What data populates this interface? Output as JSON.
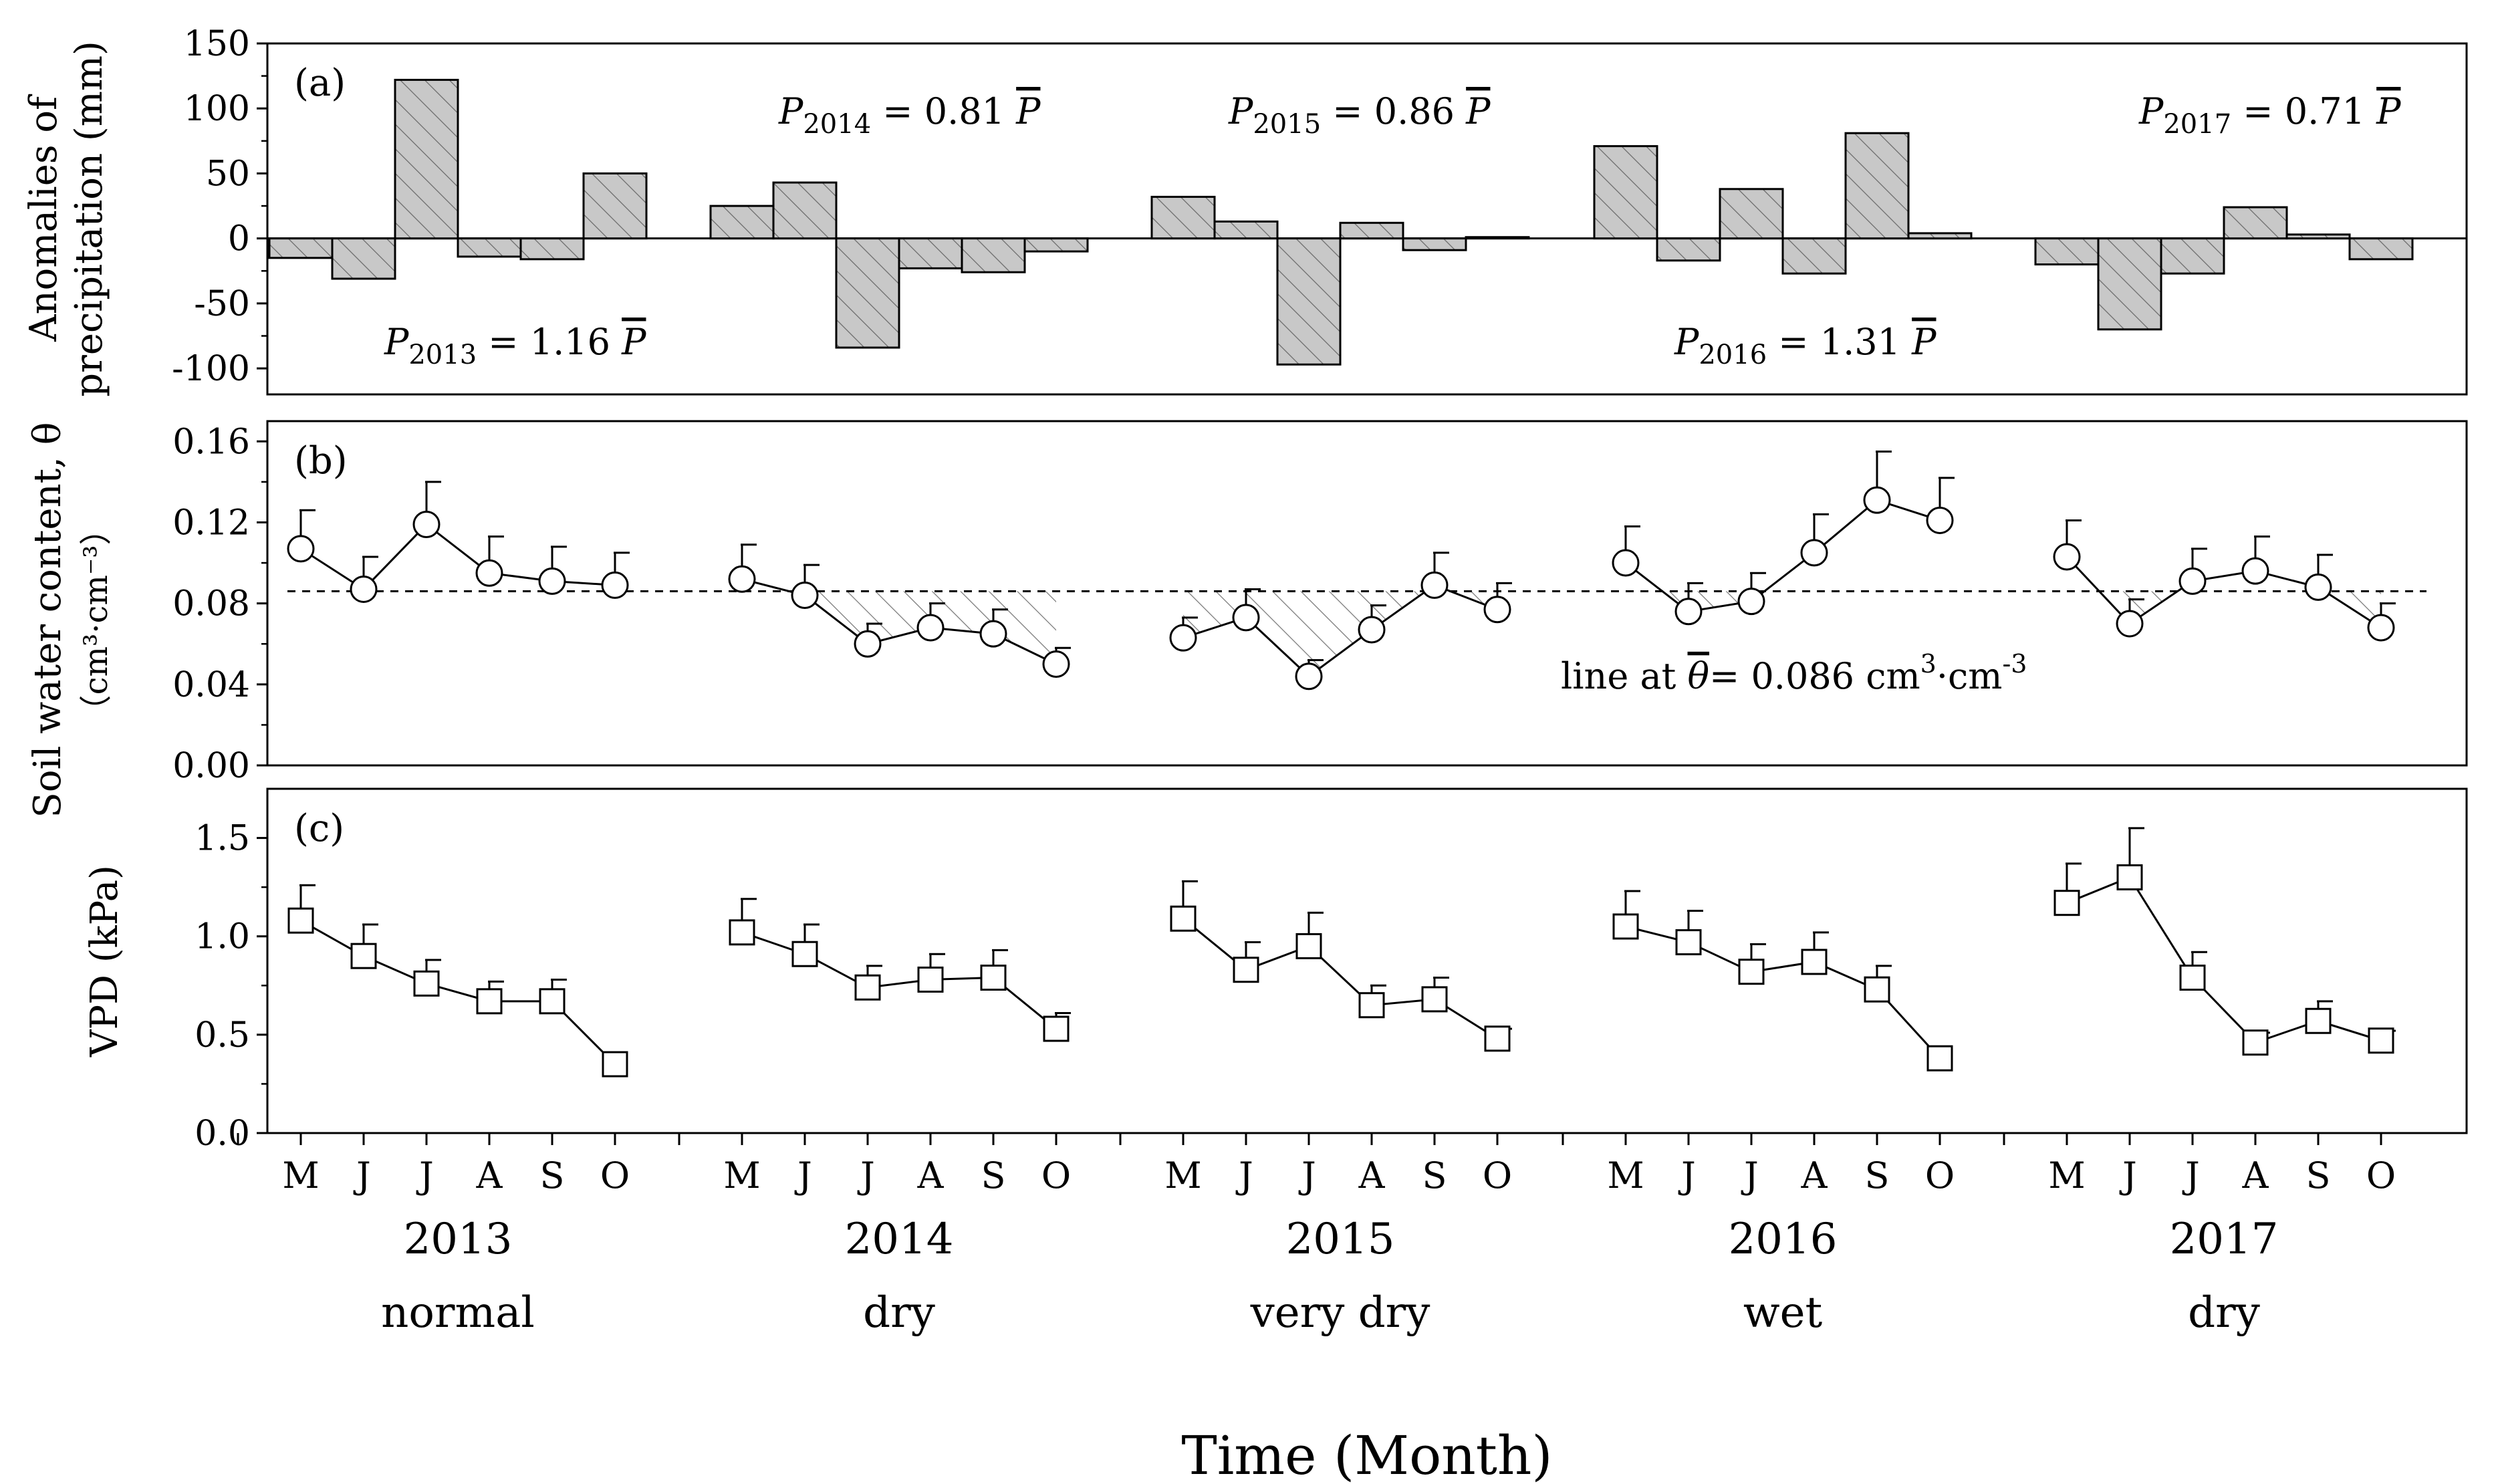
{
  "chart_data": {
    "type": "bar",
    "xlabel": "Time (Month)",
    "months": [
      "M",
      "J",
      "J",
      "A",
      "S",
      "O"
    ],
    "years": [
      {
        "year": "2013",
        "label": "normal"
      },
      {
        "year": "2014",
        "label": "dry"
      },
      {
        "year": "2015",
        "label": "very dry"
      },
      {
        "year": "2016",
        "label": "wet"
      },
      {
        "year": "2017",
        "label": "dry"
      }
    ],
    "panels": [
      {
        "id": "a",
        "panel_label": "(a)",
        "type": "bar",
        "ylabel_line1": "Anomalies of",
        "ylabel_line2": "precipitation (mm)",
        "ylim": [
          -120,
          150
        ],
        "yticks": [
          -100,
          -50,
          0,
          50,
          100,
          150
        ],
        "ytick_labels": [
          "-100",
          "-50",
          "0",
          "50",
          "100",
          "150"
        ],
        "values": [
          [
            -15,
            -31,
            122,
            -14,
            -16,
            50
          ],
          [
            25,
            43,
            -84,
            -23,
            -26,
            -10
          ],
          [
            32,
            13,
            -97,
            12,
            -9,
            1
          ],
          [
            71,
            -17,
            38,
            -27,
            81,
            4
          ],
          [
            -20,
            -70,
            -27,
            24,
            3,
            -16
          ]
        ],
        "annotations": [
          {
            "text": "P",
            "sub": "2013",
            "rest": " = 1.16 ",
            "pbar": "P",
            "year_index": 0
          },
          {
            "text": "P",
            "sub": "2014",
            "rest": " = 0.81 ",
            "pbar": "P",
            "year_index": 1
          },
          {
            "text": "P",
            "sub": "2015",
            "rest": " = 0.86 ",
            "pbar": "P",
            "year_index": 2
          },
          {
            "text": "P",
            "sub": "2016",
            "rest": " = 1.31 ",
            "pbar": "P",
            "year_index": 3
          },
          {
            "text": "P",
            "sub": "2017",
            "rest": " = 0.71 ",
            "pbar": "P",
            "year_index": 4
          }
        ]
      },
      {
        "id": "b",
        "panel_label": "(b)",
        "type": "line",
        "ylabel": "Soil water content, θ",
        "ylabel_unit": "（cm³·cm⁻³）",
        "ylim": [
          0,
          0.17
        ],
        "yticks": [
          0,
          0.04,
          0.08,
          0.12,
          0.16
        ],
        "ytick_labels": [
          "0.00",
          "0.04",
          "0.08",
          "0.12",
          "0.16"
        ],
        "marker": "circle",
        "reference_line": 0.086,
        "reference_label_prefix": "line at ",
        "reference_label_theta": "θ",
        "reference_label_value": "= 0.086 cm",
        "reference_label_mid": "·cm",
        "reference_label_sup1": "3",
        "reference_label_sup2": "-3",
        "values": [
          [
            0.107,
            0.087,
            0.119,
            0.095,
            0.091,
            0.089
          ],
          [
            0.092,
            0.084,
            0.06,
            0.068,
            0.065,
            0.05
          ],
          [
            0.063,
            0.073,
            0.044,
            0.067,
            0.089,
            0.077
          ],
          [
            0.1,
            0.076,
            0.081,
            0.105,
            0.131,
            0.121
          ],
          [
            0.103,
            0.07,
            0.091,
            0.096,
            0.088,
            0.068
          ]
        ],
        "errors": [
          [
            0.019,
            0.016,
            0.021,
            0.018,
            0.017,
            0.016
          ],
          [
            0.017,
            0.015,
            0.01,
            0.012,
            0.012,
            0.008
          ],
          [
            0.01,
            0.014,
            0.008,
            0.012,
            0.016,
            0.013
          ],
          [
            0.018,
            0.014,
            0.014,
            0.019,
            0.024,
            0.021
          ],
          [
            0.018,
            0.012,
            0.016,
            0.017,
            0.016,
            0.012
          ]
        ]
      },
      {
        "id": "c",
        "panel_label": "(c)",
        "type": "line",
        "ylabel": "VPD (kPa)",
        "ylim": [
          0,
          1.75
        ],
        "yticks": [
          0,
          0.5,
          1.0,
          1.5
        ],
        "ytick_labels": [
          "0.0",
          "0.5",
          "1.0",
          "1.5"
        ],
        "marker": "square",
        "values": [
          [
            1.08,
            0.9,
            0.76,
            0.67,
            0.67,
            0.35
          ],
          [
            1.02,
            0.91,
            0.74,
            0.78,
            0.79,
            0.53
          ],
          [
            1.09,
            0.83,
            0.95,
            0.65,
            0.68,
            0.48
          ],
          [
            1.05,
            0.97,
            0.82,
            0.87,
            0.73,
            0.38
          ],
          [
            1.17,
            1.3,
            0.79,
            0.46,
            0.57,
            0.47
          ]
        ],
        "errors": [
          [
            0.18,
            0.16,
            0.12,
            0.1,
            0.11,
            0.0
          ],
          [
            0.17,
            0.15,
            0.11,
            0.13,
            0.14,
            0.08
          ],
          [
            0.19,
            0.14,
            0.17,
            0.1,
            0.11,
            0.05
          ],
          [
            0.18,
            0.16,
            0.14,
            0.15,
            0.12,
            0.0
          ],
          [
            0.2,
            0.25,
            0.13,
            0.05,
            0.1,
            0.05
          ]
        ]
      }
    ]
  }
}
